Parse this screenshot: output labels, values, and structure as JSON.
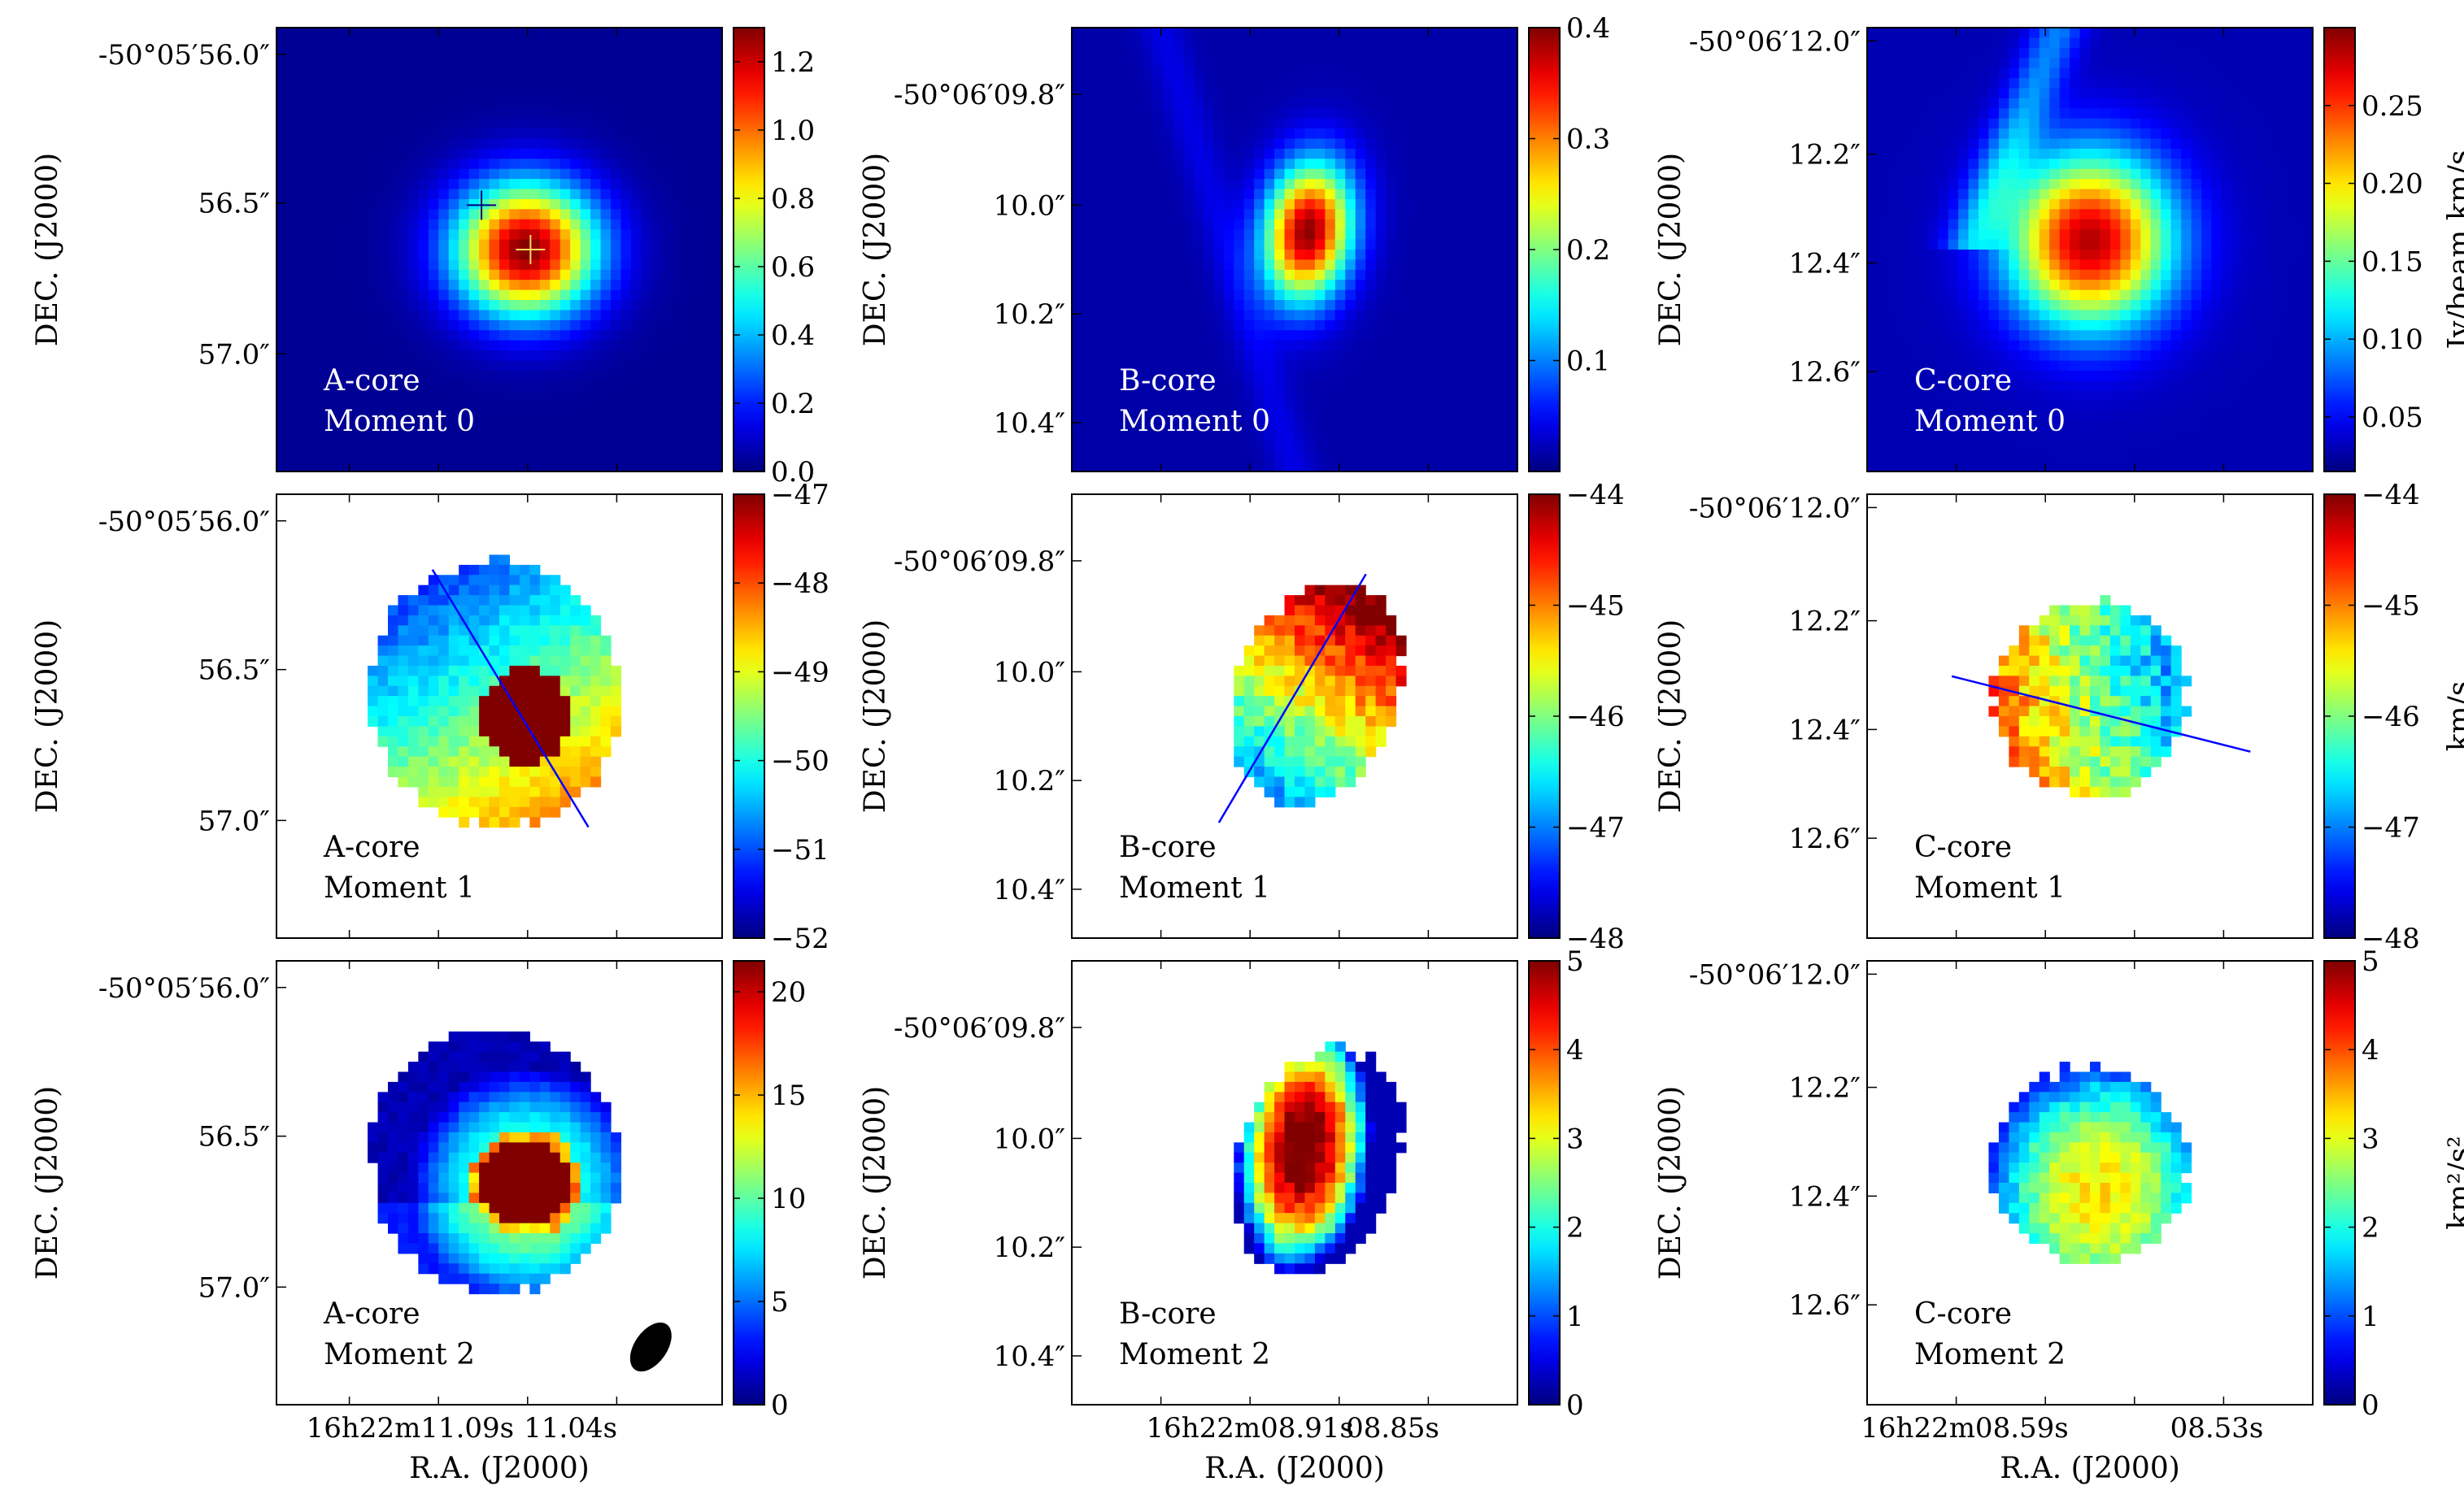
{
  "chart_data": {
    "type": "heatmap",
    "figure": "ALMA moment maps of three cores (A, B, C): moment 0, 1 and 2",
    "xlabel": "R.A. (J2000)",
    "ylabel": "DEC. (J2000)",
    "columns": [
      {
        "core": "A-core",
        "dec_ticks": [
          "-50°05′56.0″",
          "56.5″",
          "57.0″"
        ],
        "ra_ticks": [
          "11.09",
          "11.04"
        ],
        "ra_prefix": "16h22m",
        "ra_sec": "s"
      },
      {
        "core": "B-core",
        "dec_ticks": [
          "-50°06′09.8″",
          "10.0″",
          "10.2″",
          "10.4″"
        ],
        "ra_ticks": [
          "08.91",
          "08.85"
        ],
        "ra_prefix": "16h22m",
        "ra_sec": "s"
      },
      {
        "core": "C-core",
        "dec_ticks": [
          "-50°06′12.0″",
          "12.2″",
          "12.4″",
          "12.6″"
        ],
        "ra_ticks": [
          "08.59",
          "08.53"
        ],
        "ra_prefix": "16h22m",
        "ra_sec": "s"
      }
    ],
    "rows": [
      {
        "moment": "Moment 0",
        "colorbars": [
          {
            "min": 0.0,
            "max": 1.3,
            "ticks": [
              "0.0",
              "0.2",
              "0.4",
              "0.6",
              "0.8",
              "1.0",
              "1.2"
            ],
            "tick_values": [
              0,
              0.2,
              0.4,
              0.6,
              0.8,
              1.0,
              1.2
            ],
            "label": ""
          },
          {
            "min": 0.0,
            "max": 0.4,
            "ticks": [
              "0.1",
              "0.2",
              "0.3",
              "0.4"
            ],
            "tick_values": [
              0.1,
              0.2,
              0.3,
              0.4
            ],
            "label": ""
          },
          {
            "min": 0.015,
            "max": 0.3,
            "ticks": [
              "0.05",
              "0.10",
              "0.15",
              "0.20",
              "0.25"
            ],
            "tick_values": [
              0.05,
              0.1,
              0.15,
              0.2,
              0.25
            ],
            "label": "Jy/beam km/s"
          }
        ]
      },
      {
        "moment": "Moment 1",
        "colorbars": [
          {
            "min": -52,
            "max": -47,
            "ticks": [
              "−52",
              "−51",
              "−50",
              "−49",
              "−48",
              "−47"
            ],
            "tick_values": [
              -52,
              -51,
              -50,
              -49,
              -48,
              -47
            ],
            "label": ""
          },
          {
            "min": -48,
            "max": -44,
            "ticks": [
              "−48",
              "−47",
              "−46",
              "−45",
              "−44"
            ],
            "tick_values": [
              -48,
              -47,
              -46,
              -45,
              -44
            ],
            "label": ""
          },
          {
            "min": -48,
            "max": -44,
            "ticks": [
              "−48",
              "−47",
              "−46",
              "−45",
              "−44"
            ],
            "tick_values": [
              -48,
              -47,
              -46,
              -45,
              -44
            ],
            "label": "km/s"
          }
        ]
      },
      {
        "moment": "Moment 2",
        "colorbars": [
          {
            "min": 0,
            "max": 21.5,
            "ticks": [
              "0",
              "5",
              "10",
              "15",
              "20"
            ],
            "tick_values": [
              0,
              5,
              10,
              15,
              20
            ],
            "label": ""
          },
          {
            "min": 0,
            "max": 5,
            "ticks": [
              "0",
              "1",
              "2",
              "3",
              "4",
              "5"
            ],
            "tick_values": [
              0,
              1,
              2,
              3,
              4,
              5
            ],
            "label": ""
          },
          {
            "min": 0,
            "max": 5,
            "ticks": [
              "0",
              "1",
              "2",
              "3",
              "4",
              "5"
            ],
            "tick_values": [
              0,
              1,
              2,
              3,
              4,
              5
            ],
            "label": "km²/s²"
          }
        ]
      }
    ],
    "colormap": "jet",
    "annotations": [
      "Moment 0 A-core: two '+' markers mark continuum peaks",
      "Moment 1: blue line marks position-velocity cut in each core",
      "Moment 2 A-core: black ellipse shows synthesized beam"
    ]
  }
}
